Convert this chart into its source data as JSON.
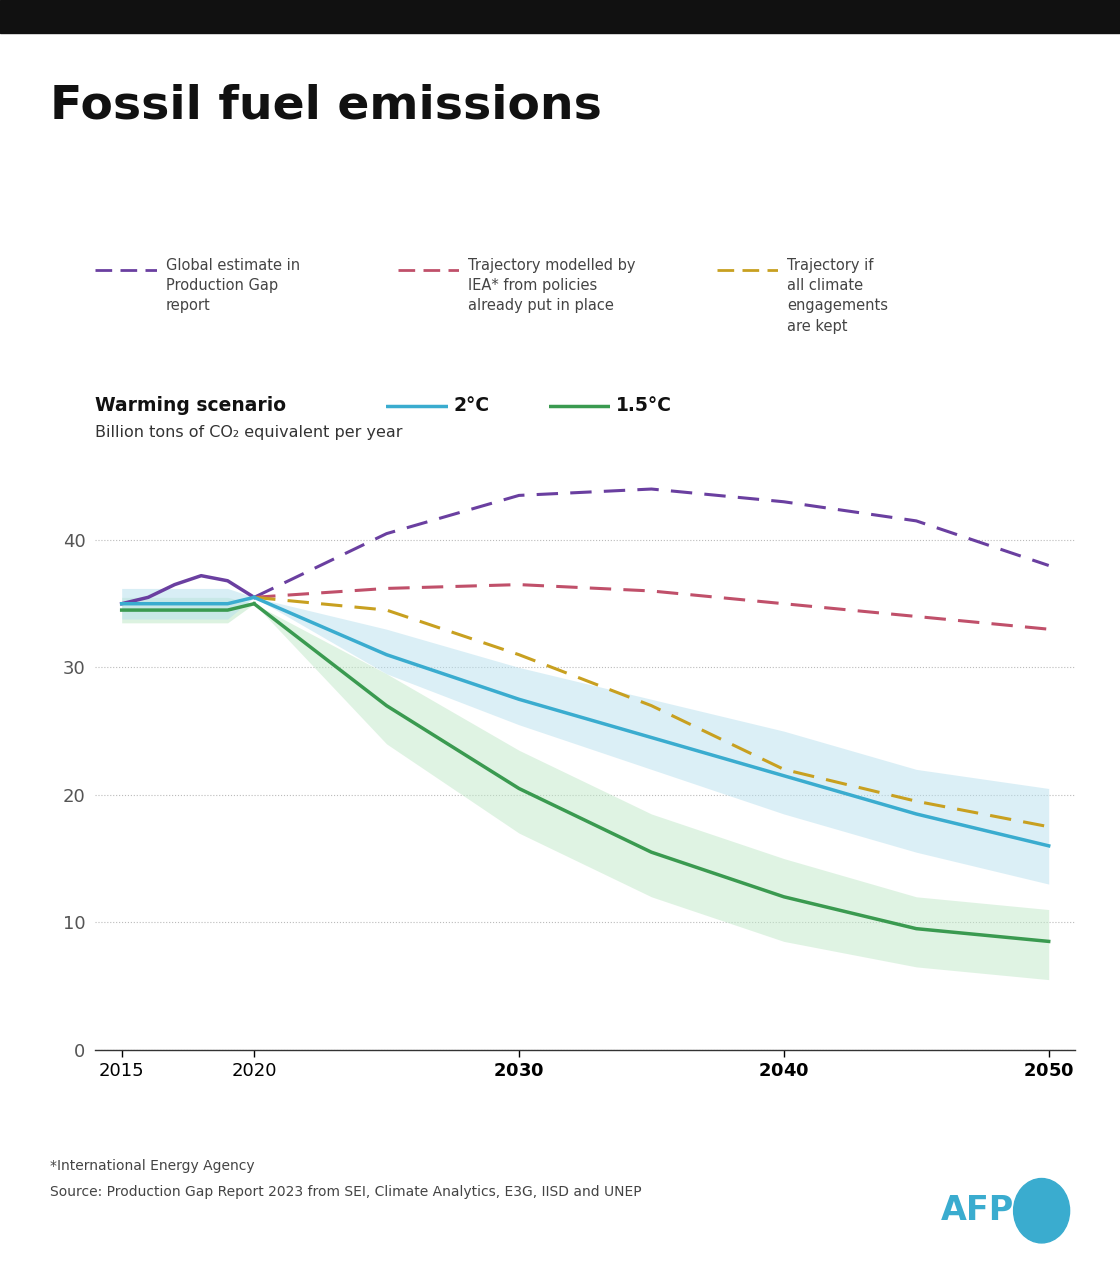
{
  "title": "Fossil fuel emissions",
  "ylabel": "Billion tons of CO₂ equivalent per year",
  "warming_label": "Warming scenario",
  "footnote1": "*International Energy Agency",
  "footnote2": "Source: Production Gap Report 2023 from SEI, Climate Analytics, E3G, IISD and UNEP",
  "background_color": "#ffffff",
  "years_hist": [
    2015,
    2016,
    2017,
    2018,
    2019,
    2020
  ],
  "purple_hist": [
    35.0,
    35.5,
    36.5,
    37.2,
    36.8,
    35.5
  ],
  "years_proj": [
    2020,
    2025,
    2030,
    2035,
    2040,
    2045,
    2050
  ],
  "purple_proj": [
    35.5,
    40.5,
    43.5,
    44.0,
    43.0,
    41.5,
    38.0
  ],
  "red_proj": [
    35.5,
    36.2,
    36.5,
    36.0,
    35.0,
    34.0,
    33.0
  ],
  "yellow_proj": [
    35.5,
    34.5,
    31.0,
    27.0,
    22.0,
    19.5,
    17.5
  ],
  "years_2c": [
    2020,
    2025,
    2030,
    2035,
    2040,
    2045,
    2050
  ],
  "line_2c": [
    35.5,
    31.0,
    27.5,
    24.5,
    21.5,
    18.5,
    16.0
  ],
  "upper_2c": [
    35.5,
    33.0,
    30.0,
    27.5,
    25.0,
    22.0,
    20.5
  ],
  "lower_2c": [
    35.5,
    29.5,
    25.5,
    22.0,
    18.5,
    15.5,
    13.0
  ],
  "years_15c": [
    2020,
    2025,
    2030,
    2035,
    2040,
    2045,
    2050
  ],
  "line_15c": [
    35.0,
    27.0,
    20.5,
    15.5,
    12.0,
    9.5,
    8.5
  ],
  "upper_15c": [
    35.0,
    29.5,
    23.5,
    18.5,
    15.0,
    12.0,
    11.0
  ],
  "lower_15c": [
    35.0,
    24.0,
    17.0,
    12.0,
    8.5,
    6.5,
    5.5
  ],
  "years_15c_hist": [
    2015,
    2016,
    2017,
    2018,
    2019,
    2020
  ],
  "line_15c_hist": [
    34.5,
    34.5,
    34.5,
    34.5,
    34.5,
    35.0
  ],
  "upper_15c_hist": [
    35.5,
    35.5,
    35.5,
    35.5,
    35.5,
    35.0
  ],
  "lower_15c_hist": [
    33.5,
    33.5,
    33.5,
    33.5,
    33.5,
    35.0
  ],
  "years_2c_hist": [
    2015,
    2016,
    2017,
    2018,
    2019,
    2020
  ],
  "line_2c_hist": [
    35.0,
    35.0,
    35.0,
    35.0,
    35.0,
    35.5
  ],
  "upper_2c_hist": [
    36.2,
    36.2,
    36.2,
    36.2,
    36.2,
    35.5
  ],
  "lower_2c_hist": [
    33.8,
    33.8,
    33.8,
    33.8,
    33.8,
    35.5
  ],
  "color_purple": "#6A3FA0",
  "color_red": "#C0506A",
  "color_yellow": "#C8A020",
  "color_2c": "#3AACCF",
  "color_15c": "#3A9A50",
  "color_2c_band": "#B8E0EE",
  "color_15c_band": "#C0E8C8",
  "xlim": [
    2014,
    2051
  ],
  "ylim": [
    0,
    47
  ],
  "yticks": [
    0,
    10,
    20,
    30,
    40
  ],
  "xticks": [
    2015,
    2020,
    2030,
    2040,
    2050
  ]
}
